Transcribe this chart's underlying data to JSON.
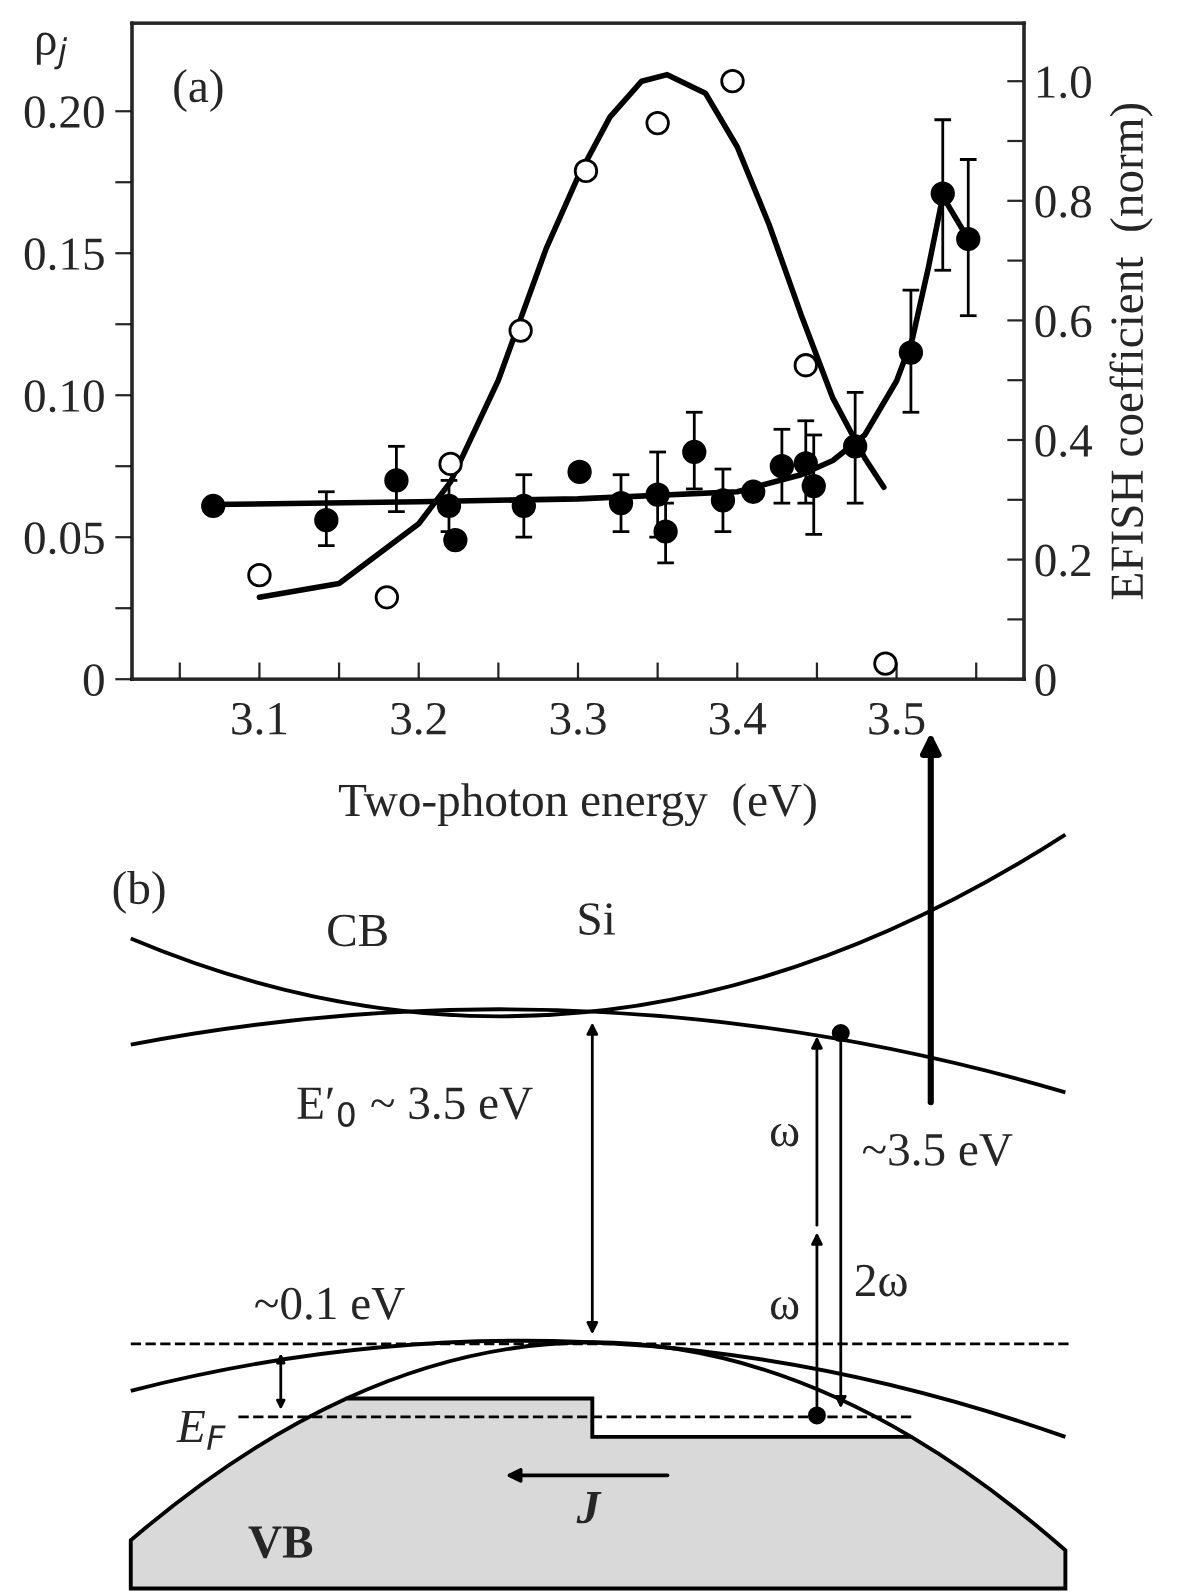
{
  "chart_data": [
    {
      "type": "scatter",
      "xlabel": "Two-photon energy  (eV)",
      "ylabel": "ρ$_{j}$",
      "y2label": "EFISH coefficient  (norm)",
      "annotations": [
        "(a)"
      ],
      "xlim": [
        3.02,
        3.58
      ],
      "xticks": [
        {
          "value": 3.05,
          "label": null
        },
        3.1,
        {
          "value": 3.15,
          "label": null
        },
        3.2,
        {
          "value": 3.25,
          "label": null
        },
        3.3,
        {
          "value": 3.35,
          "label": null
        },
        3.4,
        {
          "value": 3.45,
          "label": null
        },
        3.5,
        {
          "value": 3.55,
          "label": null
        }
      ],
      "ylim": [
        0,
        0.231
      ],
      "yticks": [
        0,
        {
          "value": 0.025,
          "label": null
        },
        0.05,
        {
          "value": 0.075,
          "label": null
        },
        {
          "value": 0.1,
          "label": "0.10"
        },
        {
          "value": 0.125,
          "label": null
        },
        0.15,
        {
          "value": 0.175,
          "label": null
        },
        {
          "value": 0.2,
          "label": "0.20"
        }
      ],
      "y2lim": [
        0,
        1.097
      ],
      "y2ticks": [
        0,
        {
          "value": 0.1,
          "label": null
        },
        0.2,
        {
          "value": 0.3,
          "label": null
        },
        0.4,
        {
          "value": 0.5,
          "label": null
        },
        0.6,
        {
          "value": 0.7,
          "label": null
        },
        0.8,
        {
          "value": 0.9,
          "label": null
        },
        {
          "value": 1.0,
          "label": "1.0"
        }
      ],
      "grid": false,
      "legend": false,
      "series": [
        {
          "type": "scatter",
          "color": "#000000",
          "marker": "circle",
          "x": [
            3.071,
            3.142,
            3.186,
            3.219,
            3.223,
            3.266,
            3.301,
            3.327,
            3.35,
            3.355,
            3.373,
            3.391,
            3.41,
            3.428,
            3.443,
            3.448,
            3.474,
            3.509,
            3.529,
            3.545
          ],
          "values": [
            0.061,
            0.056,
            0.07,
            0.061,
            0.049,
            0.061,
            0.073,
            0.062,
            0.065,
            0.052,
            0.08,
            0.063,
            0.066,
            0.075,
            0.076,
            0.068,
            0.082,
            0.115,
            0.171,
            0.155
          ],
          "errors": [
            null,
            [
              0.047,
              0.066
            ],
            [
              0.059,
              0.082
            ],
            [
              0.052,
              0.07
            ],
            null,
            [
              0.05,
              0.072
            ],
            null,
            [
              0.052,
              0.072
            ],
            [
              0.05,
              0.08
            ],
            [
              0.041,
              0.062
            ],
            [
              0.067,
              0.094
            ],
            [
              0.052,
              0.074
            ],
            null,
            [
              0.062,
              0.088
            ],
            [
              0.062,
              0.091
            ],
            [
              0.051,
              0.086
            ],
            [
              0.062,
              0.101
            ],
            [
              0.094,
              0.137
            ],
            [
              0.144,
              0.197
            ],
            [
              0.128,
              0.183
            ]
          ]
        },
        {
          "type": "line",
          "color": "#000000",
          "marker": "none",
          "x": [
            3.07,
            3.2,
            3.3,
            3.4,
            3.44,
            3.46,
            3.48,
            3.5,
            3.51,
            3.52,
            3.529,
            3.545
          ],
          "values": [
            0.0615,
            0.0625,
            0.0635,
            0.066,
            0.072,
            0.077,
            0.086,
            0.105,
            0.12,
            0.145,
            0.17,
            0.155
          ]
        },
        {
          "type": "scatter",
          "axis": "y2",
          "color": "#000000",
          "marker": "circle",
          "x": [
            3.1,
            3.18,
            3.22,
            3.264,
            3.305,
            3.35,
            3.397,
            3.443,
            3.493
          ],
          "values": [
            0.174,
            0.137,
            0.36,
            0.583,
            0.85,
            0.93,
            1.0,
            0.525,
            0.026
          ]
        },
        {
          "type": "line",
          "axis": "y2",
          "color": "#000000",
          "marker": "none",
          "x": [
            3.1,
            3.15,
            3.2,
            3.22,
            3.25,
            3.28,
            3.3,
            3.32,
            3.34,
            3.356,
            3.38,
            3.4,
            3.42,
            3.44,
            3.46,
            3.48,
            3.492
          ],
          "values": [
            0.137,
            0.16,
            0.26,
            0.33,
            0.5,
            0.72,
            0.84,
            0.94,
            1.0,
            1.011,
            0.98,
            0.89,
            0.76,
            0.61,
            0.47,
            0.37,
            0.321
          ]
        }
      ]
    },
    {
      "type": "other",
      "annotations": [
        "(b)",
        "CB",
        "Si",
        "E′$_{0}$ ~ 3.5 eV",
        "ω",
        "~3.5 eV",
        "2ω",
        "~0.1 eV",
        "ω",
        "E$_{F}$",
        "J",
        "VB"
      ]
    }
  ]
}
